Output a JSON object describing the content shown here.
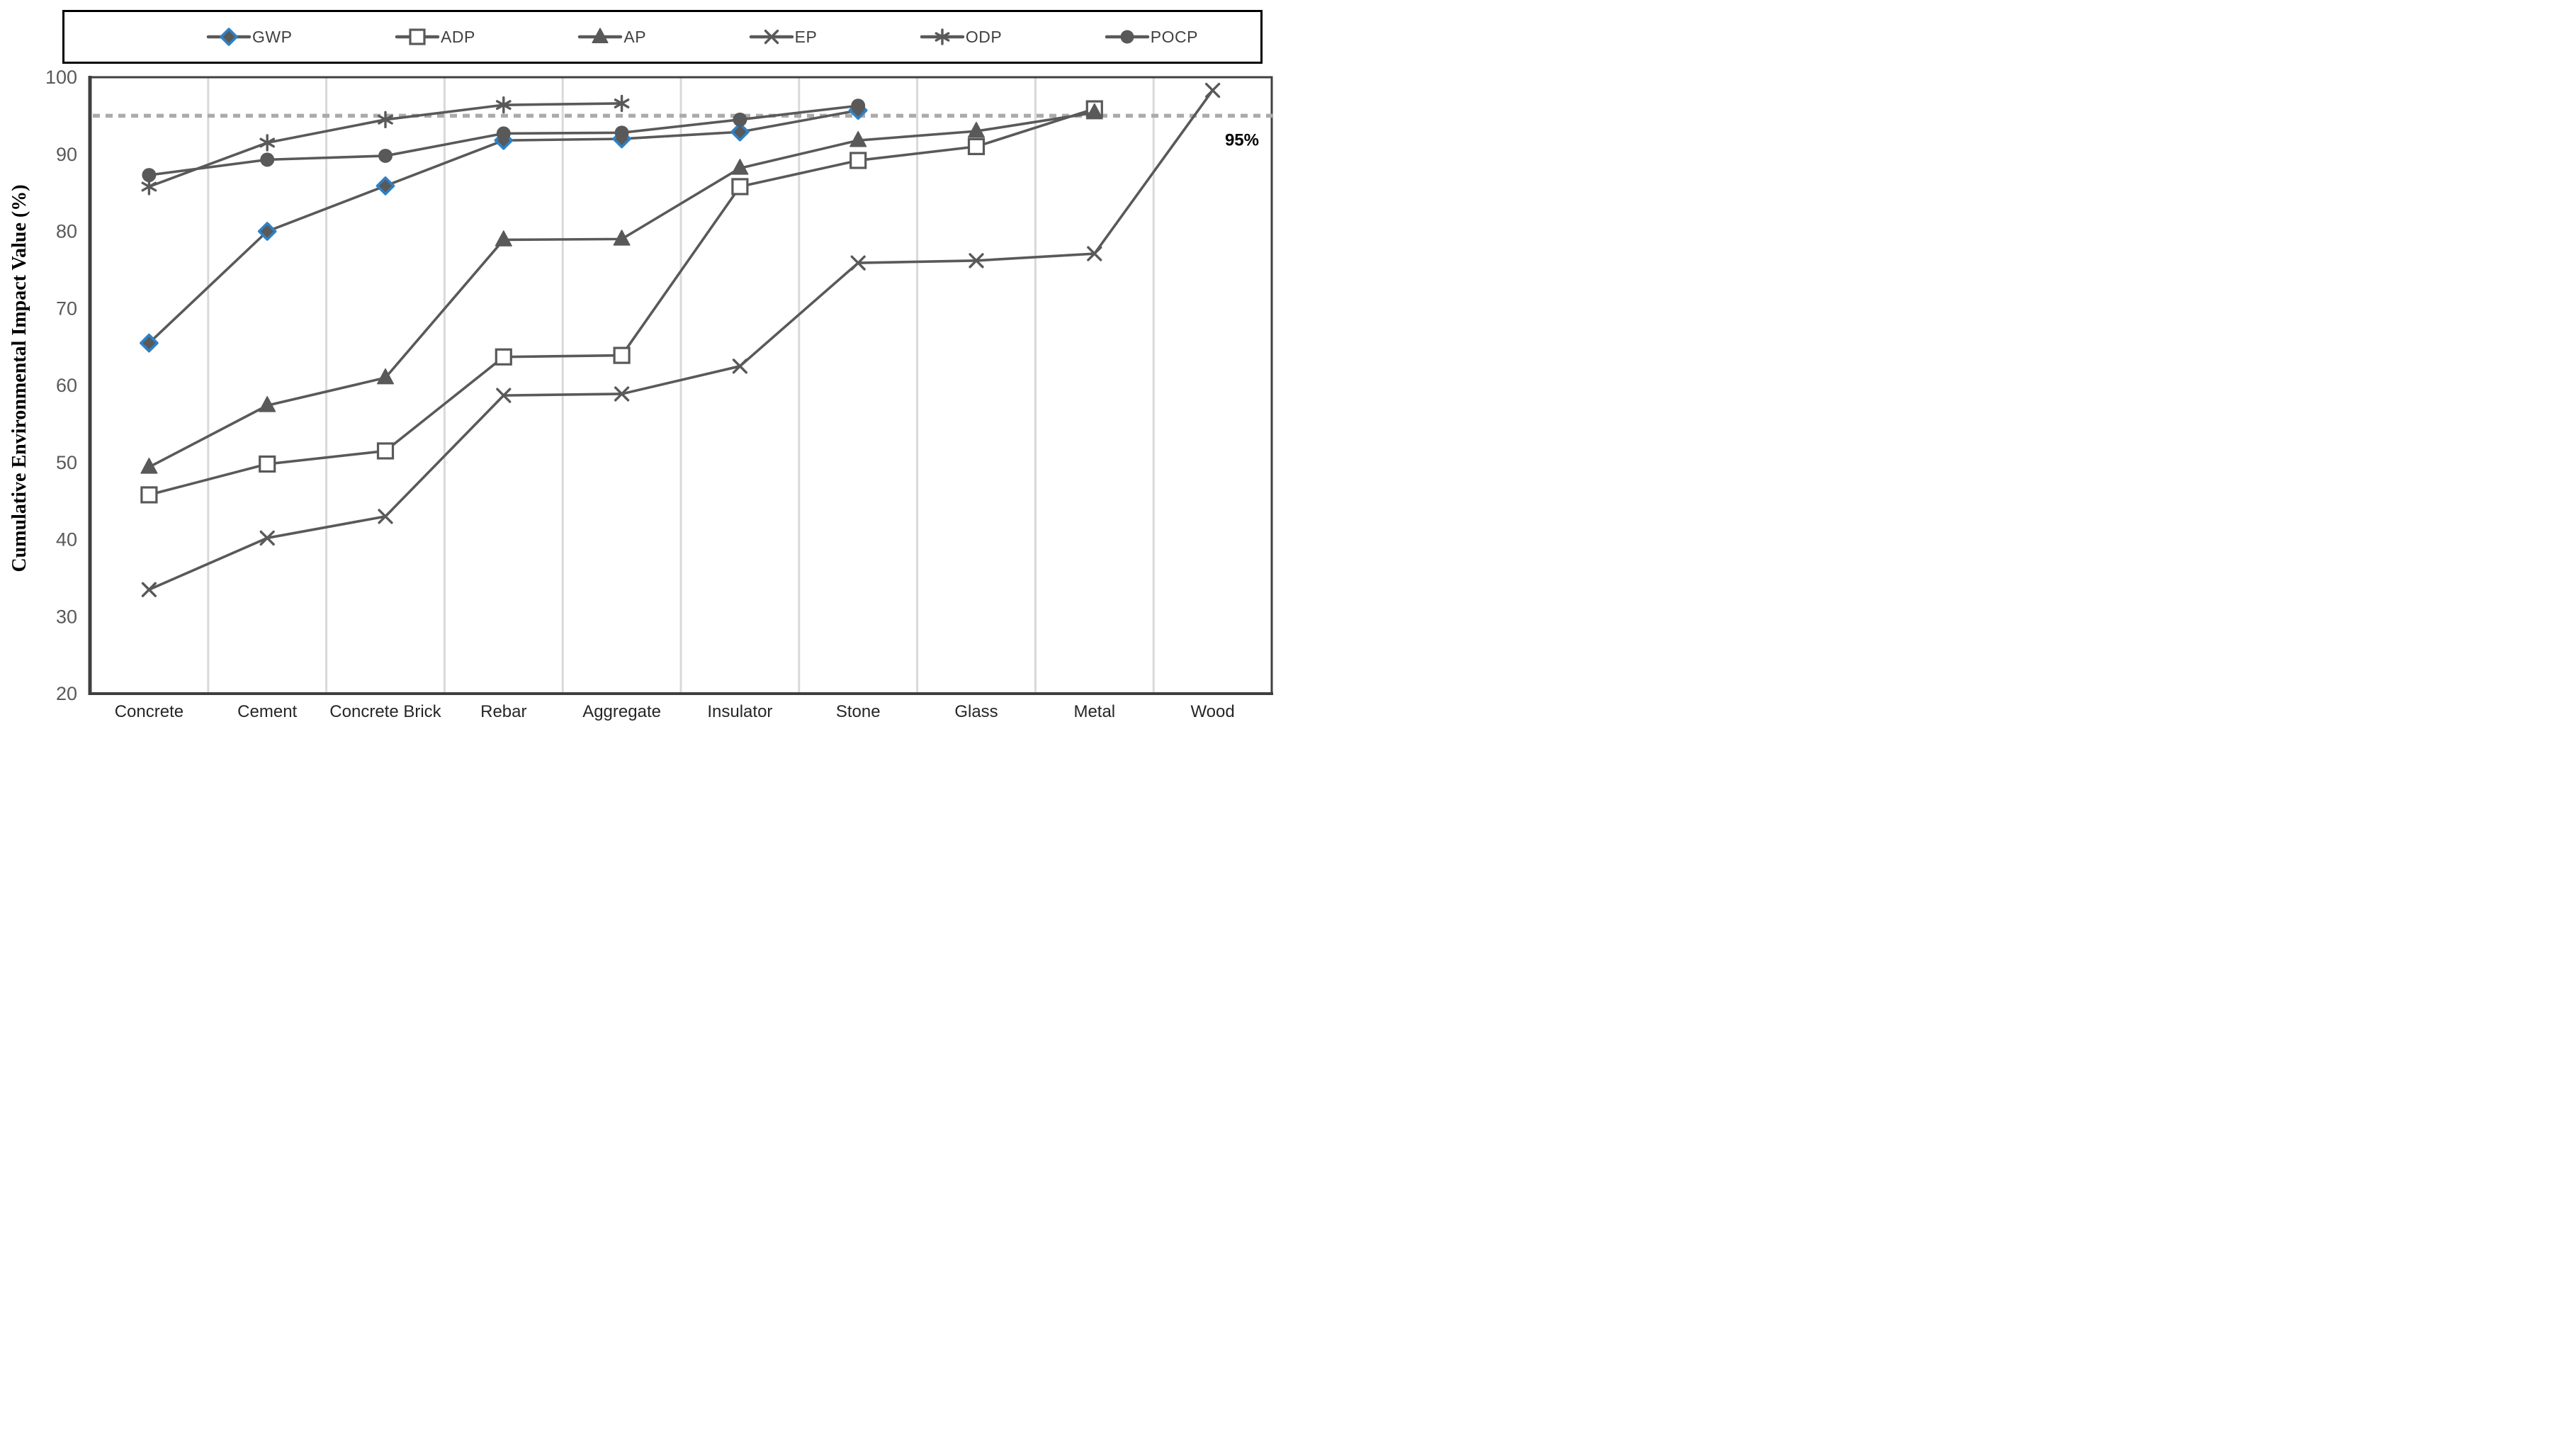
{
  "chart_data": {
    "type": "line",
    "title": "",
    "xlabel": "",
    "ylabel": "Cumulative Environmental Impact Value (%)",
    "ylim": [
      20,
      100
    ],
    "ytick_step": 10,
    "ytick_labels": [
      "20",
      "30",
      "40",
      "50",
      "60",
      "70",
      "80",
      "90",
      "100"
    ],
    "grid": "vertical-between-categories",
    "legend_position": "top",
    "categories": [
      "Concrete",
      "Cement",
      "Concrete Brick",
      "Rebar",
      "Aggregate",
      "Insulator",
      "Stone",
      "Glass",
      "Metal",
      "Wood"
    ],
    "series": [
      {
        "name": "GWP",
        "marker": "diamond",
        "values": [
          65.5,
          80.0,
          85.9,
          91.8,
          92.0,
          92.9,
          95.7,
          null,
          null,
          null
        ]
      },
      {
        "name": "ADP",
        "marker": "square-open",
        "values": [
          45.8,
          49.8,
          51.5,
          63.7,
          63.9,
          85.8,
          89.2,
          91.0,
          95.9,
          null
        ]
      },
      {
        "name": "AP",
        "marker": "triangle",
        "values": [
          49.4,
          57.4,
          61.0,
          78.9,
          79.0,
          88.2,
          91.8,
          93.0,
          95.4,
          null
        ]
      },
      {
        "name": "EP",
        "marker": "x",
        "values": [
          33.5,
          40.2,
          43.0,
          58.7,
          58.9,
          62.5,
          75.9,
          76.2,
          77.1,
          98.3
        ]
      },
      {
        "name": "ODP",
        "marker": "asterisk",
        "values": [
          85.8,
          91.5,
          94.5,
          96.4,
          96.6,
          null,
          null,
          null,
          null,
          null
        ]
      },
      {
        "name": "POCP",
        "marker": "circle",
        "values": [
          87.3,
          89.3,
          89.8,
          92.7,
          92.8,
          94.5,
          96.3,
          null,
          null,
          null
        ]
      }
    ],
    "reference_line": {
      "value": 95,
      "label": "95%"
    },
    "colors": {
      "line": "#595959",
      "gwp_marker_accent": "#2E81C6",
      "marker_fill": "#595959",
      "open_marker_fill": "#ffffff",
      "reference": "#ABABAB",
      "gridline": "#D9D9D9",
      "axis_frame": "#3F3F3F",
      "tick_label": "#595959",
      "category_label": "#262626",
      "reference_label": "#000000"
    }
  }
}
